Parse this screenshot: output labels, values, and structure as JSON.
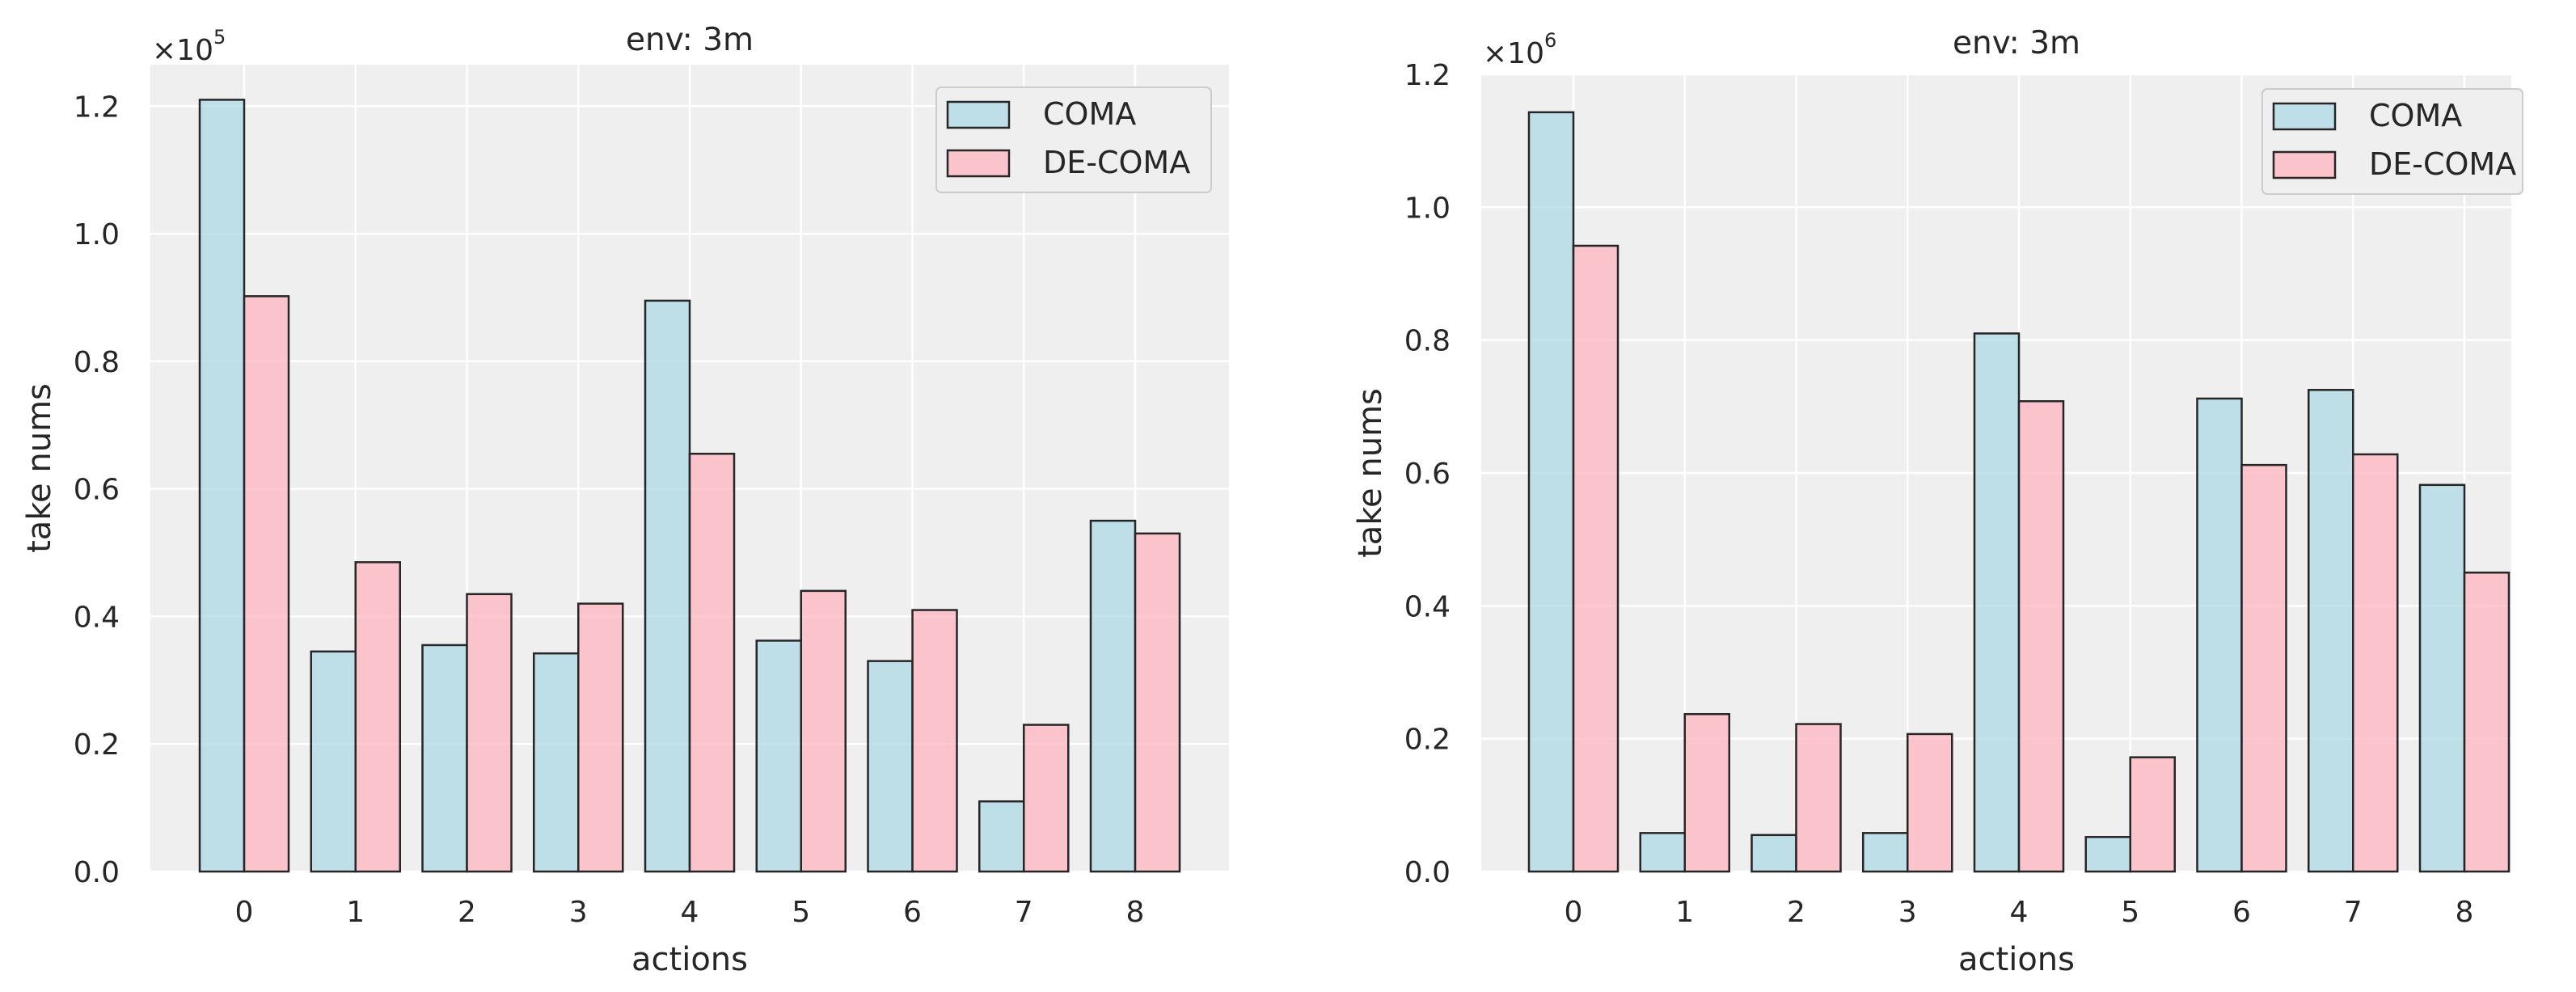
{
  "chart_data": [
    {
      "type": "bar",
      "title": "env: 3m",
      "xlabel": "actions",
      "ylabel": "take nums",
      "scale_base": "×10",
      "scale_exp": "5",
      "categories": [
        "0",
        "1",
        "2",
        "3",
        "4",
        "5",
        "6",
        "7",
        "8"
      ],
      "ylim": [
        0,
        1.265
      ],
      "yticks": [
        "0.0",
        "0.2",
        "0.4",
        "0.6",
        "0.8",
        "1.0",
        "1.2"
      ],
      "series": [
        {
          "name": "COMA",
          "color": "#add8e6",
          "values": [
            1.21,
            0.345,
            0.355,
            0.342,
            0.895,
            0.362,
            0.33,
            0.11,
            0.55
          ]
        },
        {
          "name": "DE-COMA",
          "color": "#ffb6c1",
          "values": [
            0.902,
            0.485,
            0.435,
            0.42,
            0.655,
            0.44,
            0.41,
            0.23,
            0.53
          ]
        }
      ],
      "legend": "top-right",
      "grid": true
    },
    {
      "type": "bar",
      "title": "env: 3m",
      "xlabel": "actions",
      "ylabel": "take nums",
      "scale_base": "×10",
      "scale_exp": "6",
      "categories": [
        "0",
        "1",
        "2",
        "3",
        "4",
        "5",
        "6",
        "7",
        "8"
      ],
      "ylim": [
        0,
        1.2
      ],
      "yticks": [
        "0.0",
        "0.2",
        "0.4",
        "0.6",
        "0.8",
        "1.0",
        "1.2"
      ],
      "series": [
        {
          "name": "COMA",
          "color": "#add8e6",
          "values": [
            1.143,
            0.058,
            0.055,
            0.058,
            0.81,
            0.052,
            0.712,
            0.725,
            0.582
          ]
        },
        {
          "name": "DE-COMA",
          "color": "#ffb6c1",
          "values": [
            0.942,
            0.237,
            0.222,
            0.207,
            0.708,
            0.172,
            0.612,
            0.628,
            0.45
          ]
        }
      ],
      "legend": "top-right",
      "grid": true
    }
  ]
}
